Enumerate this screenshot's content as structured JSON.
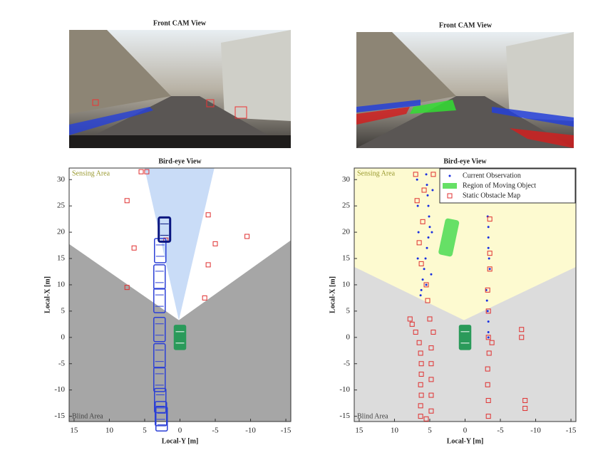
{
  "camera_views": [
    {
      "title": "Front CAM View"
    },
    {
      "title": "Front CAM View"
    }
  ],
  "chart_data": [
    {
      "type": "scatter",
      "title": "Bird-eye View",
      "xlabel": "Local-Y [m]",
      "ylabel": "Local-X [m]",
      "annotations": [
        "Sensing Area",
        "Blind Area"
      ],
      "xlim": [
        15.7,
        -15.7
      ],
      "ylim": [
        -16,
        32.2
      ],
      "xticks": [
        15,
        10,
        5,
        0,
        -5,
        -10,
        -15
      ],
      "yticks": [
        -15,
        -10,
        -5,
        0,
        5,
        10,
        15,
        20,
        25,
        30
      ],
      "series": [
        {
          "color": "#e03030",
          "marker": "square",
          "x": [
            5.5,
            4.7,
            7.5,
            6.5,
            7.5,
            -4,
            -5,
            -9.5,
            -4,
            -3.5,
            2
          ],
          "y": [
            31.5,
            31.5,
            26,
            17,
            9.5,
            23.3,
            17.8,
            19.2,
            13.8,
            7.5,
            18.5
          ]
        },
        {
          "color": "#2b3fd6",
          "marker": "car",
          "x": [
            2.8,
            2.9,
            2.9,
            2.9,
            2.9,
            2.9,
            2.8,
            2.7,
            2.6
          ],
          "y": [
            16.5,
            11.5,
            7,
            1.5,
            -3.5,
            -8,
            -12,
            -14.5,
            -15.5
          ]
        },
        {
          "color": "#0a1680",
          "marker": "car",
          "x": [
            2.2
          ],
          "y": [
            20.5
          ]
        },
        {
          "color": "#2a9a5a",
          "marker": "car",
          "x": [
            0
          ],
          "y": [
            0
          ]
        }
      ]
    },
    {
      "type": "scatter",
      "title": "Bird-eye View",
      "xlabel": "Local-Y [m]",
      "ylabel": "Local-X [m]",
      "annotations": [
        "Sensing Area",
        "Blind Area"
      ],
      "xlim": [
        15.7,
        -15.7
      ],
      "ylim": [
        -16,
        32.2
      ],
      "xticks": [
        15,
        10,
        5,
        0,
        -5,
        -10,
        -15
      ],
      "yticks": [
        -15,
        -10,
        -5,
        0,
        5,
        10,
        15,
        20,
        25,
        30
      ],
      "legend": "upper right",
      "series": [
        {
          "name": "Current Observation",
          "color": "#1a2fe0",
          "marker": "dot",
          "x": [
            5.5,
            5.4,
            5.3,
            5.2,
            5.1,
            5.0,
            5.2,
            5.4,
            5.6,
            5.8,
            6.0,
            6.2,
            6.3,
            5.5,
            4.8,
            4.7,
            4.6,
            6.8,
            6.7,
            6.6,
            6.7,
            -3.2,
            -3.3,
            -3.3,
            -3.3,
            -3.4,
            -3.5,
            -3.0,
            -3.1,
            -3.2,
            -3.3,
            -3.3,
            -3.3,
            2.2,
            2.0
          ],
          "y": [
            31,
            29,
            27,
            25,
            23,
            21,
            19,
            17,
            15,
            13,
            11,
            9,
            8,
            10,
            12,
            20,
            28,
            30,
            25,
            20,
            15,
            23,
            21,
            19,
            17,
            15,
            13,
            9,
            7,
            5,
            3,
            1,
            0,
            19.5,
            18.2
          ]
        },
        {
          "name": "Region of Moving Object",
          "color": "#66e066",
          "marker": "region",
          "x": [
            2.3
          ],
          "y": [
            19
          ]
        },
        {
          "name": "Static Obstacle Map",
          "color": "#e03030",
          "marker": "square",
          "x": [
            7.5,
            7,
            6.5,
            6.3,
            6.2,
            6.2,
            6.3,
            6.2,
            6.3,
            6.3,
            7.8,
            5,
            4.5,
            4.8,
            4.8,
            4.8,
            4.8,
            4.8,
            5.5,
            6,
            6.5,
            6.2,
            5.5,
            5.3,
            -3.5,
            -3.5,
            -3.5,
            -3.2,
            -3.3,
            -3.3,
            -3.4,
            -3.2,
            -3.2,
            -3.3,
            -3.3,
            -3.8,
            -8,
            -8,
            -8.5,
            -8.5,
            7,
            6.8,
            5.8,
            4.5
          ],
          "y": [
            2.5,
            1,
            -1,
            -3,
            -5,
            -7,
            -9,
            -11,
            -13,
            -15,
            3.5,
            3.5,
            1,
            -2,
            -5,
            -8,
            -11,
            -14,
            -15.5,
            22,
            18,
            14,
            10,
            7,
            22.5,
            16,
            13,
            9,
            5,
            0,
            -3,
            -6,
            -9,
            -12,
            -15,
            -1,
            1.5,
            0,
            -12,
            -13.5,
            31,
            26,
            28,
            31
          ]
        },
        {
          "color": "#2a9a5a",
          "marker": "car",
          "x": [
            0
          ],
          "y": [
            0
          ]
        }
      ]
    }
  ]
}
